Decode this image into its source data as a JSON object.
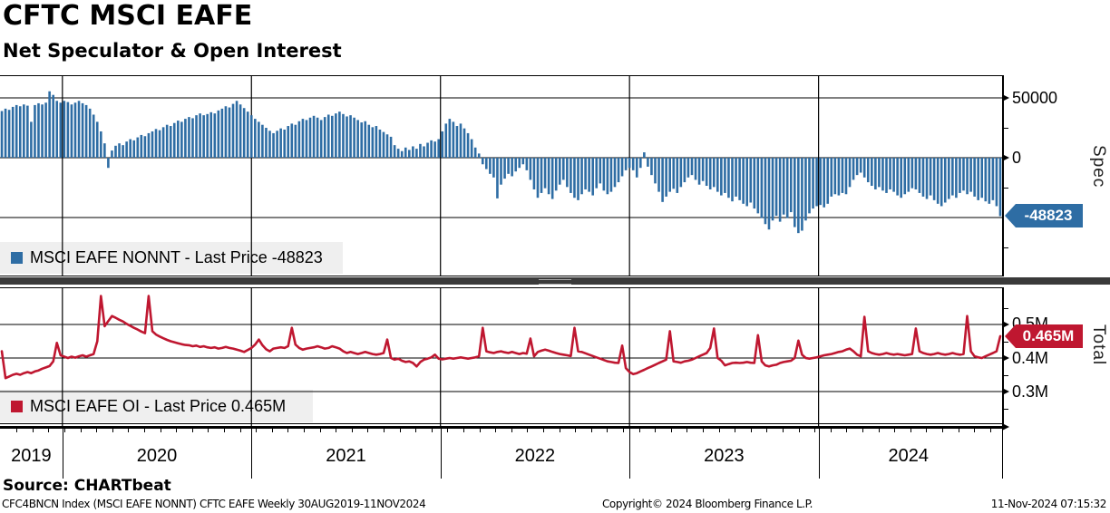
{
  "header": {
    "title": "CFTC MSCI EAFE",
    "subtitle": "Net Speculator & Open Interest"
  },
  "top_panel": {
    "legend_label": "MSCI EAFE NONNT - Last Price -48823",
    "axis_title": "Spec",
    "last_price_label": "-48823",
    "series_color": "#2e6da4"
  },
  "bottom_panel": {
    "legend_label": "MSCI EAFE OI - Last Price 0.465M",
    "axis_title": "Total",
    "last_price_label": "0.465M",
    "series_color": "#bf1730"
  },
  "footer": {
    "source": "Source: CHARTbeat",
    "ticker_info": "CFC4BNCN Index (MSCI EAFE NONNT) CFTC EAFE  Weekly 30AUG2019-11NOV2024",
    "copyright": "Copyright© 2024 Bloomberg Finance L.P.",
    "timestamp": "11-Nov-2024 07:15:32"
  },
  "chart_data": [
    {
      "type": "bar",
      "name": "MSCI EAFE NONNT",
      "title": "Net Speculator",
      "frequency": "Weekly",
      "date_range": "30AUG2019-11NOV2024",
      "last_value": -48823,
      "color": "#2e6da4",
      "ylim": [
        -96000,
        69000
      ],
      "y_major_ticks": [
        {
          "value": 50000,
          "label": "50000"
        },
        {
          "value": 0,
          "label": "0"
        }
      ],
      "y_minor_tick_values": [
        25000,
        -25000,
        -75000
      ],
      "gridline_values": [
        50000,
        0,
        -50000
      ],
      "legend_position": "bottom-left",
      "grid": true,
      "values": [
        39000,
        41000,
        40000,
        42500,
        44000,
        43000,
        44500,
        43500,
        30000,
        44000,
        45500,
        44500,
        46000,
        55500,
        52500,
        47500,
        46000,
        47500,
        46500,
        44500,
        46000,
        47500,
        45500,
        44000,
        41000,
        36000,
        30000,
        22000,
        12000,
        -8500,
        6000,
        10000,
        12000,
        10500,
        13500,
        15500,
        14500,
        17000,
        19000,
        18000,
        20500,
        22000,
        24000,
        23000,
        25500,
        27500,
        26500,
        29000,
        31000,
        30000,
        32500,
        34000,
        33000,
        35500,
        37000,
        35500,
        36500,
        38000,
        37000,
        39500,
        41000,
        43000,
        42000,
        45000,
        47500,
        44500,
        41500,
        38500,
        35500,
        32500,
        30000,
        27500,
        25000,
        22500,
        20500,
        22500,
        24500,
        23500,
        26500,
        28500,
        27500,
        30500,
        32500,
        31500,
        33500,
        35000,
        33500,
        31500,
        34000,
        36000,
        35000,
        37000,
        38500,
        36500,
        34500,
        35500,
        33500,
        31500,
        29500,
        30500,
        27500,
        25500,
        26500,
        23500,
        21500,
        19500,
        17500,
        10500,
        7500,
        5500,
        8500,
        6500,
        9500,
        7500,
        11500,
        9500,
        12500,
        14500,
        13500,
        15500,
        22000,
        28500,
        32500,
        30000,
        26500,
        28500,
        24500,
        20500,
        15500,
        8500,
        3500,
        -5500,
        -9500,
        -13500,
        -16500,
        -34000,
        -22500,
        -17500,
        -13500,
        -15500,
        -11500,
        -8500,
        -5500,
        -10500,
        -18500,
        -26500,
        -33500,
        -29500,
        -25500,
        -30500,
        -34500,
        -27500,
        -22500,
        -18500,
        -24500,
        -29500,
        -33500,
        -35500,
        -30500,
        -26500,
        -28500,
        -31500,
        -25500,
        -21500,
        -27500,
        -30500,
        -28500,
        -24500,
        -20500,
        -15500,
        -10500,
        -8500,
        -10500,
        -16500,
        -8500,
        4500,
        -7500,
        -14500,
        -21500,
        -28500,
        -37000,
        -32500,
        -28500,
        -26000,
        -29500,
        -24500,
        -20500,
        -16500,
        -14500,
        -18500,
        -22500,
        -19500,
        -23500,
        -26500,
        -24500,
        -28500,
        -31500,
        -29500,
        -33500,
        -36500,
        -32500,
        -35500,
        -38500,
        -40500,
        -37500,
        -42500,
        -46500,
        -50500,
        -55500,
        -60000,
        -52500,
        -48500,
        -53500,
        -47500,
        -50500,
        -45500,
        -58000,
        -63000,
        -61000,
        -52500,
        -46500,
        -42500,
        -40500,
        -39500,
        -41500,
        -38500,
        -32500,
        -30500,
        -31500,
        -29500,
        -30500,
        -24500,
        -18500,
        -14500,
        -12500,
        -16500,
        -20500,
        -23500,
        -26500,
        -24500,
        -27500,
        -29500,
        -26500,
        -28500,
        -31500,
        -33500,
        -30500,
        -28500,
        -25500,
        -26500,
        -29500,
        -32500,
        -34500,
        -31500,
        -35500,
        -38500,
        -40500,
        -37500,
        -34500,
        -31500,
        -33500,
        -29500,
        -27500,
        -30500,
        -28500,
        -32500,
        -35500,
        -33500,
        -36500,
        -38500,
        -35500,
        -40500,
        -48823
      ]
    },
    {
      "type": "line",
      "name": "MSCI EAFE OI",
      "title": "Open Interest",
      "frequency": "Weekly",
      "date_range": "30AUG2019-11NOV2024",
      "last_value_millions": 0.465,
      "color": "#bf1730",
      "ylim_millions": [
        0.145,
        0.615
      ],
      "y_major_ticks": [
        {
          "value": 0.5,
          "label": "0.5M"
        },
        {
          "value": 0.4,
          "label": "0.4M"
        },
        {
          "value": 0.3,
          "label": "0.3M"
        }
      ],
      "y_minor_tick_values": [
        0.55,
        0.45,
        0.35,
        0.25
      ],
      "gridline_values": [
        0.5,
        0.4,
        0.3
      ],
      "legend_position": "bottom-left",
      "grid": true,
      "values_millions": [
        0.42,
        0.34,
        0.345,
        0.35,
        0.353,
        0.35,
        0.355,
        0.358,
        0.355,
        0.36,
        0.363,
        0.368,
        0.372,
        0.376,
        0.39,
        0.445,
        0.408,
        0.404,
        0.4,
        0.404,
        0.401,
        0.405,
        0.408,
        0.404,
        0.408,
        0.412,
        0.45,
        0.585,
        0.495,
        0.51,
        0.525,
        0.52,
        0.514,
        0.509,
        0.502,
        0.496,
        0.49,
        0.485,
        0.479,
        0.474,
        0.585,
        0.48,
        0.47,
        0.464,
        0.459,
        0.454,
        0.45,
        0.447,
        0.444,
        0.441,
        0.439,
        0.438,
        0.435,
        0.437,
        0.433,
        0.435,
        0.432,
        0.43,
        0.432,
        0.428,
        0.43,
        0.433,
        0.43,
        0.428,
        0.425,
        0.422,
        0.418,
        0.424,
        0.43,
        0.44,
        0.455,
        0.438,
        0.426,
        0.42,
        0.428,
        0.43,
        0.432,
        0.43,
        0.435,
        0.49,
        0.44,
        0.43,
        0.425,
        0.428,
        0.43,
        0.432,
        0.435,
        0.432,
        0.428,
        0.43,
        0.435,
        0.432,
        0.428,
        0.42,
        0.415,
        0.418,
        0.415,
        0.412,
        0.415,
        0.418,
        0.415,
        0.412,
        0.41,
        0.412,
        0.415,
        0.455,
        0.4,
        0.395,
        0.398,
        0.392,
        0.388,
        0.39,
        0.385,
        0.375,
        0.388,
        0.395,
        0.398,
        0.402,
        0.41,
        0.398,
        0.396,
        0.398,
        0.4,
        0.398,
        0.4,
        0.402,
        0.4,
        0.398,
        0.4,
        0.402,
        0.405,
        0.49,
        0.42,
        0.417,
        0.415,
        0.418,
        0.42,
        0.417,
        0.415,
        0.418,
        0.415,
        0.412,
        0.415,
        0.413,
        0.458,
        0.405,
        0.418,
        0.422,
        0.425,
        0.422,
        0.418,
        0.415,
        0.412,
        0.41,
        0.408,
        0.406,
        0.49,
        0.42,
        0.418,
        0.414,
        0.41,
        0.406,
        0.402,
        0.398,
        0.394,
        0.39,
        0.388,
        0.386,
        0.385,
        0.437,
        0.37,
        0.358,
        0.352,
        0.355,
        0.36,
        0.365,
        0.37,
        0.375,
        0.38,
        0.385,
        0.39,
        0.395,
        0.48,
        0.39,
        0.388,
        0.386,
        0.39,
        0.392,
        0.395,
        0.4,
        0.405,
        0.41,
        0.415,
        0.43,
        0.488,
        0.4,
        0.392,
        0.378,
        0.382,
        0.385,
        0.386,
        0.385,
        0.386,
        0.388,
        0.386,
        0.385,
        0.468,
        0.39,
        0.378,
        0.375,
        0.378,
        0.38,
        0.385,
        0.388,
        0.39,
        0.392,
        0.4,
        0.452,
        0.41,
        0.4,
        0.398,
        0.4,
        0.402,
        0.405,
        0.408,
        0.41,
        0.412,
        0.415,
        0.418,
        0.42,
        0.425,
        0.428,
        0.42,
        0.41,
        0.405,
        0.523,
        0.42,
        0.415,
        0.412,
        0.41,
        0.412,
        0.415,
        0.412,
        0.41,
        0.412,
        0.41,
        0.408,
        0.41,
        0.412,
        0.488,
        0.42,
        0.415,
        0.412,
        0.41,
        0.412,
        0.415,
        0.412,
        0.41,
        0.412,
        0.415,
        0.412,
        0.41,
        0.412,
        0.525,
        0.42,
        0.405,
        0.402,
        0.4,
        0.405,
        0.41,
        0.415,
        0.42,
        0.465
      ]
    }
  ],
  "x_axis": {
    "years": [
      {
        "label": "2019",
        "center_week": 8.5
      },
      {
        "label": "2020",
        "center_week": 42.75
      },
      {
        "label": "2021",
        "center_week": 94.25
      },
      {
        "label": "2022",
        "center_week": 145.75
      },
      {
        "label": "2023",
        "center_week": 197.25
      },
      {
        "label": "2024",
        "center_week": 247.5
      }
    ],
    "year_boundary_weeks": [
      17,
      68.5,
      120,
      171.5,
      223,
      273
    ]
  }
}
